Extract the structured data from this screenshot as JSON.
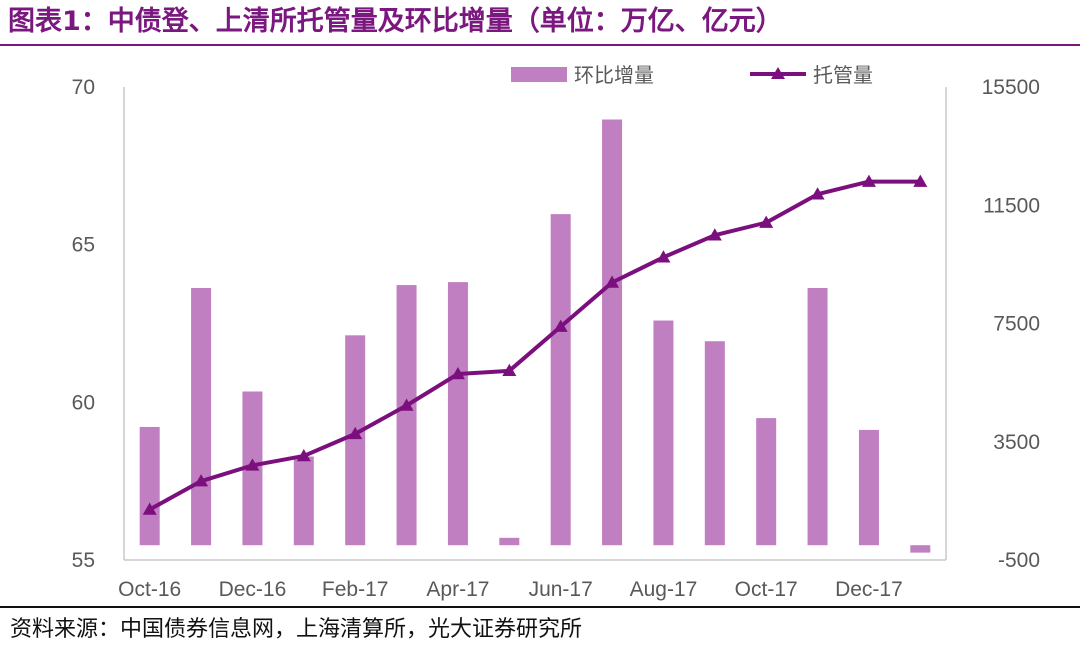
{
  "title": "图表1：中债登、上清所托管量及环比增量（单位：万亿、亿元）",
  "source": "资料来源：中国债券信息网，上海清算所，光大证券研究所",
  "colors": {
    "bar": "#c07fc1",
    "line": "#7b0f7d",
    "axis": "#c8c8c8",
    "text": "#595959"
  },
  "chart_data": {
    "type": "bar",
    "categories": [
      "Oct-16",
      "Nov-16",
      "Dec-16",
      "Jan-17",
      "Feb-17",
      "Mar-17",
      "Apr-17",
      "May-17",
      "Jun-17",
      "Jul-17",
      "Aug-17",
      "Sep-17",
      "Oct-17",
      "Nov-17",
      "Dec-17",
      "Jan-18"
    ],
    "x_tick_labels": [
      "Oct-16",
      "",
      "Dec-16",
      "",
      "Feb-17",
      "",
      "Apr-17",
      "",
      "Jun-17",
      "",
      "Aug-17",
      "",
      "Oct-17",
      "",
      "Dec-17",
      ""
    ],
    "left_axis": {
      "ylim": [
        55,
        70
      ],
      "ticks": [
        "70",
        "65",
        "60",
        "55"
      ]
    },
    "right_axis": {
      "ylim": [
        -500,
        15500
      ],
      "ticks": [
        "15500",
        "11500",
        "7500",
        "3500",
        "-500"
      ]
    },
    "grid": false,
    "legend_position": "top-right",
    "series": [
      {
        "name": "环比增量",
        "type": "bar",
        "axis": "right",
        "values": [
          4000,
          8700,
          5200,
          3000,
          7100,
          8800,
          8900,
          250,
          11200,
          14400,
          7600,
          6900,
          4300,
          8700,
          3900,
          -250
        ]
      },
      {
        "name": "托管量",
        "type": "line",
        "axis": "left",
        "marker": "triangle",
        "values": [
          56.6,
          57.5,
          58.0,
          58.3,
          59.0,
          59.9,
          60.9,
          61.0,
          62.4,
          63.8,
          64.6,
          65.3,
          65.7,
          66.6,
          67.0,
          67.0
        ]
      }
    ]
  }
}
